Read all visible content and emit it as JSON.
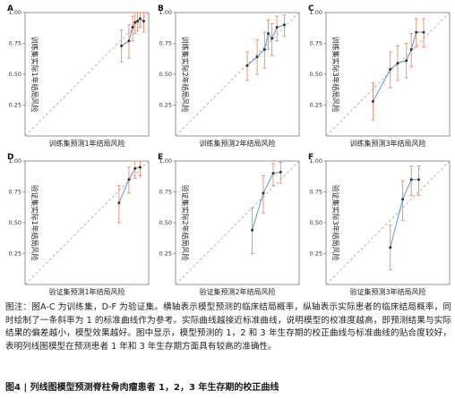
{
  "figure": {
    "note": "图注：图A-C 为训练集，D-F 为验证集。横轴表示模型预测的临床结局概率，纵轴表示实际患者的临床结局概率，同时绘制了一条斜率为 1 的标准曲线作为参考。实际曲线越接近标准曲线，说明模型的校准度越高，即预测结果与实际结果的偏差越小，模型效果越好。图中显示，模型预测的 1，2 和 3 年生存期的校正曲线与标准曲线的贴合度较好，表明列线图模型在预测患者 1 年和 3 年生存期方面具有较高的准确性。",
    "caption": "图4 | 列线图模型预测脊柱骨肉瘤患者 1，2，3 年生存期的校正曲线"
  },
  "colors": {
    "calibration_line": "#6a9fd8",
    "point": "#333333",
    "error_bar": "#f08a6a",
    "reference_line": "#b5b5b5",
    "frame": "#7a7a7a"
  },
  "chart_data": [
    {
      "panel": "A",
      "type": "line",
      "xlabel": "训练集预测1年结局风险",
      "ylabel": "训练集实际1年结局风险",
      "xlim": [
        0,
        1
      ],
      "ylim": [
        0,
        1
      ],
      "yticks": [
        0.25,
        0.5,
        0.75,
        1.0
      ],
      "ytick_labels": [
        "0.25",
        "0.50",
        "0.75",
        "1.00"
      ],
      "reference_line": "y = x",
      "grid": false,
      "points": [
        {
          "x": 0.78,
          "y": 0.73,
          "lo": 0.6,
          "hi": 0.86
        },
        {
          "x": 0.84,
          "y": 0.77,
          "lo": 0.63,
          "hi": 0.9
        },
        {
          "x": 0.87,
          "y": 0.88,
          "lo": 0.77,
          "hi": 0.97
        },
        {
          "x": 0.89,
          "y": 0.92,
          "lo": 0.83,
          "hi": 1.0
        },
        {
          "x": 0.91,
          "y": 0.93,
          "lo": 0.85,
          "hi": 1.0
        },
        {
          "x": 0.93,
          "y": 0.95,
          "lo": 0.88,
          "hi": 1.0
        },
        {
          "x": 0.96,
          "y": 0.93,
          "lo": 0.84,
          "hi": 1.0
        }
      ]
    },
    {
      "panel": "B",
      "type": "line",
      "xlabel": "训练集预测2年结局风险",
      "ylabel": "训练集实际2年结局风险",
      "xlim": [
        0,
        1
      ],
      "ylim": [
        0,
        1
      ],
      "yticks": [
        0.25,
        0.5,
        0.75,
        1.0
      ],
      "ytick_labels": [
        "0.25",
        "0.50",
        "0.75",
        "1.00"
      ],
      "reference_line": "y = x",
      "grid": false,
      "points": [
        {
          "x": 0.58,
          "y": 0.57,
          "lo": 0.45,
          "hi": 0.68
        },
        {
          "x": 0.66,
          "y": 0.64,
          "lo": 0.5,
          "hi": 0.78
        },
        {
          "x": 0.72,
          "y": 0.7,
          "lo": 0.55,
          "hi": 0.84
        },
        {
          "x": 0.75,
          "y": 0.83,
          "lo": 0.7,
          "hi": 0.94
        },
        {
          "x": 0.78,
          "y": 0.79,
          "lo": 0.65,
          "hi": 0.91
        },
        {
          "x": 0.82,
          "y": 0.88,
          "lo": 0.77,
          "hi": 0.97
        },
        {
          "x": 0.88,
          "y": 0.9,
          "lo": 0.81,
          "hi": 0.98
        }
      ]
    },
    {
      "panel": "C",
      "type": "line",
      "xlabel": "训练集预测3年结局风险",
      "ylabel": "训练集实际3年结局风险",
      "xlim": [
        0,
        1
      ],
      "ylim": [
        0,
        1
      ],
      "yticks": [
        0.25,
        0.5,
        0.75,
        1.0
      ],
      "ytick_labels": [
        "0.25",
        "0.50",
        "0.75",
        "1.00"
      ],
      "reference_line": "y = x",
      "grid": false,
      "points": [
        {
          "x": 0.38,
          "y": 0.28,
          "lo": 0.13,
          "hi": 0.43
        },
        {
          "x": 0.52,
          "y": 0.54,
          "lo": 0.39,
          "hi": 0.68
        },
        {
          "x": 0.58,
          "y": 0.59,
          "lo": 0.45,
          "hi": 0.73
        },
        {
          "x": 0.65,
          "y": 0.61,
          "lo": 0.47,
          "hi": 0.75
        },
        {
          "x": 0.69,
          "y": 0.7,
          "lo": 0.56,
          "hi": 0.83
        },
        {
          "x": 0.73,
          "y": 0.84,
          "lo": 0.72,
          "hi": 0.95
        },
        {
          "x": 0.79,
          "y": 0.84,
          "lo": 0.72,
          "hi": 0.95
        }
      ]
    },
    {
      "panel": "D",
      "type": "line",
      "xlabel": "验证集预测1年结局风险",
      "ylabel": "验证集实际1年结局风险",
      "xlim": [
        0,
        1
      ],
      "ylim": [
        0,
        1
      ],
      "yticks": [
        0.25,
        0.5,
        0.75,
        1.0
      ],
      "ytick_labels": [
        "0.25",
        "0.50",
        "0.75",
        "1.00"
      ],
      "reference_line": "y = x",
      "grid": false,
      "points": [
        {
          "x": 0.76,
          "y": 0.66,
          "lo": 0.5,
          "hi": 0.8
        },
        {
          "x": 0.84,
          "y": 0.85,
          "lo": 0.74,
          "hi": 0.95
        },
        {
          "x": 0.89,
          "y": 0.94,
          "lo": 0.86,
          "hi": 1.0
        },
        {
          "x": 0.93,
          "y": 0.95,
          "lo": 0.88,
          "hi": 1.0
        }
      ]
    },
    {
      "panel": "E",
      "type": "line",
      "xlabel": "验证集预测2年结局风险",
      "ylabel": "验证集实际2年结局风险",
      "xlim": [
        0,
        1
      ],
      "ylim": [
        0,
        1
      ],
      "yticks": [
        0.25,
        0.5,
        0.75,
        1.0
      ],
      "ytick_labels": [
        "0.25",
        "0.50",
        "0.75",
        "1.00"
      ],
      "reference_line": "y = x",
      "grid": false,
      "points": [
        {
          "x": 0.62,
          "y": 0.44,
          "lo": 0.25,
          "hi": 0.62
        },
        {
          "x": 0.71,
          "y": 0.74,
          "lo": 0.58,
          "hi": 0.88
        },
        {
          "x": 0.79,
          "y": 0.9,
          "lo": 0.8,
          "hi": 0.98
        },
        {
          "x": 0.85,
          "y": 0.91,
          "lo": 0.82,
          "hi": 0.99
        }
      ]
    },
    {
      "panel": "F",
      "type": "line",
      "xlabel": "验证集预测3年结局风险",
      "ylabel": "验证集实际3年结局风险",
      "xlim": [
        0,
        1
      ],
      "ylim": [
        0,
        1
      ],
      "yticks": [
        0.25,
        0.5,
        0.75,
        1.0
      ],
      "ytick_labels": [
        "0.25",
        "0.50",
        "0.75",
        "1.00"
      ],
      "reference_line": "y = x",
      "grid": false,
      "points": [
        {
          "x": 0.52,
          "y": 0.3,
          "lo": 0.12,
          "hi": 0.48
        },
        {
          "x": 0.62,
          "y": 0.69,
          "lo": 0.52,
          "hi": 0.84
        },
        {
          "x": 0.69,
          "y": 0.85,
          "lo": 0.72,
          "hi": 0.96
        },
        {
          "x": 0.75,
          "y": 0.85,
          "lo": 0.72,
          "hi": 0.96
        }
      ]
    }
  ]
}
